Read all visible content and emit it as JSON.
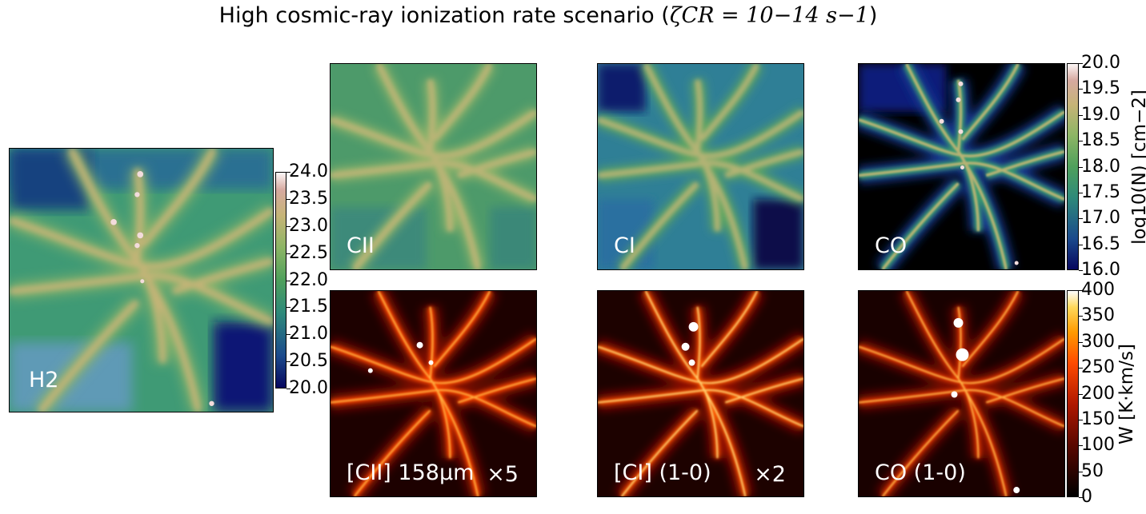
{
  "title": {
    "text": "High cosmic-ray ionization rate scenario (",
    "math": "ζCR = 10−14 s−1",
    "close": ")"
  },
  "panels": {
    "h2": {
      "label": "H2",
      "multiplier": ""
    },
    "cii": {
      "label": "CII",
      "multiplier": ""
    },
    "ci": {
      "label": "CI",
      "multiplier": ""
    },
    "co": {
      "label": "CO",
      "multiplier": ""
    },
    "cii_line": {
      "label": "[CII] 158μm",
      "multiplier": "×5"
    },
    "ci_line": {
      "label": "[CI] (1-0)",
      "multiplier": "×2"
    },
    "co_line": {
      "label": "CO (1-0)",
      "multiplier": ""
    }
  },
  "colorbars": {
    "h2": {
      "ticks": [
        "24.0",
        "23.5",
        "23.0",
        "22.5",
        "22.0",
        "21.5",
        "21.0",
        "20.5",
        "20.0"
      ],
      "range": [
        20.0,
        24.0
      ],
      "colormap": "gist_earth_like"
    },
    "column": {
      "ticks": [
        "20.0",
        "19.5",
        "19.0",
        "18.5",
        "18.0",
        "17.5",
        "17.0",
        "16.5",
        "16.0"
      ],
      "range": [
        16.0,
        20.0
      ],
      "label": "log10(N) [cm−2]",
      "colormap": "gist_earth_like"
    },
    "intensity": {
      "ticks": [
        "400",
        "350",
        "300",
        "250",
        "200",
        "150",
        "100",
        "50",
        "0"
      ],
      "range": [
        0,
        400
      ],
      "label": "W [K·km/s]",
      "colormap": "gist_heat_like"
    }
  },
  "chart_data": {
    "type": "heatmap",
    "title": "High cosmic-ray ionization rate scenario (ζCR = 10−14 s−1)",
    "maps": [
      {
        "name": "H2",
        "quantity": "log10(N)",
        "range": [
          20.0,
          24.0
        ]
      },
      {
        "name": "CII",
        "quantity": "log10(N)",
        "range": [
          16.0,
          20.0
        ]
      },
      {
        "name": "CI",
        "quantity": "log10(N)",
        "range": [
          16.0,
          20.0
        ]
      },
      {
        "name": "CO",
        "quantity": "log10(N)",
        "range": [
          16.0,
          20.0
        ]
      },
      {
        "name": "[CII] 158μm",
        "quantity": "W",
        "range": [
          0,
          400
        ],
        "scale_factor": "×5"
      },
      {
        "name": "[CI] (1-0)",
        "quantity": "W",
        "range": [
          0,
          400
        ],
        "scale_factor": "×2"
      },
      {
        "name": "CO (1-0)",
        "quantity": "W",
        "range": [
          0,
          400
        ]
      }
    ],
    "colors": {
      "earth_low": "#0b0a6e",
      "earth_mid": "#3e9a6a",
      "earth_high": "#c9b676",
      "earth_top": "#fdf6f6",
      "heat_low": "#000000",
      "heat_mid": "#b51800",
      "heat_high": "#ff9b00",
      "heat_top": "#ffffff"
    }
  }
}
